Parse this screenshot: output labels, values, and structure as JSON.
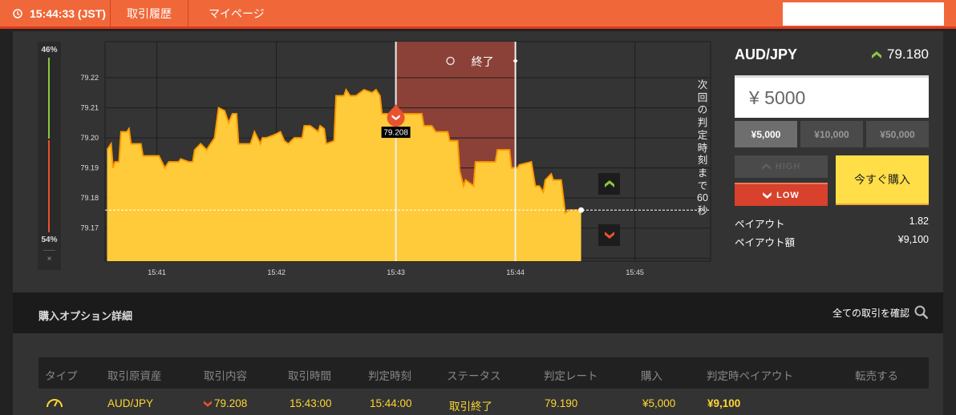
{
  "topbar": {
    "time": "15:44:33 (JST)",
    "nav": [
      "取引履歴",
      "マイページ"
    ]
  },
  "sentiment": {
    "high_pct": "46%",
    "low_pct": "54%",
    "close": "×",
    "high_color": "#8cc63f",
    "low_color": "#e8522e"
  },
  "chart_data": {
    "type": "area",
    "y_ticks": [
      "79.22",
      "79.21",
      "79.20",
      "79.19",
      "79.18",
      "79.17"
    ],
    "x_ticks": [
      "15:41",
      "15:42",
      "15:43",
      "15:44",
      "15:45"
    ],
    "xlim": [
      "15:40:34",
      "15:45:38"
    ],
    "ylim": [
      79.159,
      79.232
    ],
    "grid": true,
    "fill_color": "#ffcb3a",
    "line_color": "#ff9a00",
    "expired_label": "終了",
    "expired_range": [
      "15:43:00",
      "15:44:00"
    ],
    "entry": {
      "time": "15:43:00",
      "price": 79.208,
      "label": "79.208",
      "direction": "low"
    },
    "current_price_line": 79.176,
    "countdown": "次回の判定時刻まで60秒",
    "points": [
      [
        "15:40:35",
        79.196
      ],
      [
        "15:40:37",
        79.198
      ],
      [
        "15:40:38",
        79.19
      ],
      [
        "15:40:39",
        79.192
      ],
      [
        "15:40:41",
        79.192
      ],
      [
        "15:40:42",
        79.202
      ],
      [
        "15:40:45",
        79.202
      ],
      [
        "15:40:46",
        79.203
      ],
      [
        "15:40:47",
        79.198
      ],
      [
        "15:40:52",
        79.198
      ],
      [
        "15:40:53",
        79.194
      ],
      [
        "15:41:01",
        79.194
      ],
      [
        "15:41:04",
        79.19
      ],
      [
        "15:41:06",
        79.192
      ],
      [
        "15:41:11",
        79.192
      ],
      [
        "15:41:12",
        79.193
      ],
      [
        "15:41:16",
        79.192
      ],
      [
        "15:41:18",
        79.192
      ],
      [
        "15:41:19",
        79.196
      ],
      [
        "15:41:22",
        79.198
      ],
      [
        "15:41:25",
        79.196
      ],
      [
        "15:41:27",
        79.198
      ],
      [
        "15:41:29",
        79.2
      ],
      [
        "15:41:31",
        79.21
      ],
      [
        "15:41:34",
        79.209
      ],
      [
        "15:41:36",
        79.205
      ],
      [
        "15:41:38",
        79.208
      ],
      [
        "15:41:40",
        79.208
      ],
      [
        "15:41:41",
        79.198
      ],
      [
        "15:41:47",
        79.198
      ],
      [
        "15:41:49",
        79.202
      ],
      [
        "15:41:52",
        79.198
      ],
      [
        "15:41:53",
        79.2
      ],
      [
        "15:41:55",
        79.2
      ],
      [
        "15:41:59",
        79.201
      ],
      [
        "15:42:02",
        79.202
      ],
      [
        "15:42:04",
        79.199
      ],
      [
        "15:42:06",
        79.198
      ],
      [
        "15:42:09",
        79.2
      ],
      [
        "15:42:13",
        79.2
      ],
      [
        "15:42:14",
        79.204
      ],
      [
        "15:42:17",
        79.204
      ],
      [
        "15:42:21",
        79.202
      ],
      [
        "15:42:22",
        79.204
      ],
      [
        "15:42:24",
        79.203
      ],
      [
        "15:42:25",
        79.198
      ],
      [
        "15:42:29",
        79.199
      ],
      [
        "15:42:30",
        79.214
      ],
      [
        "15:42:34",
        79.214
      ],
      [
        "15:42:35",
        79.216
      ],
      [
        "15:42:37",
        79.214
      ],
      [
        "15:42:40",
        79.214
      ],
      [
        "15:42:44",
        79.216
      ],
      [
        "15:42:48",
        79.215
      ],
      [
        "15:42:50",
        79.216
      ],
      [
        "15:42:52",
        79.214
      ],
      [
        "15:42:53",
        79.208
      ],
      [
        "15:43:13",
        79.208
      ],
      [
        "15:43:14",
        79.204
      ],
      [
        "15:43:18",
        79.204
      ],
      [
        "15:43:20",
        79.202
      ],
      [
        "15:43:26",
        79.202
      ],
      [
        "15:43:27",
        79.199
      ],
      [
        "15:43:31",
        79.199
      ],
      [
        "15:43:32",
        79.189
      ],
      [
        "15:43:34",
        79.184
      ],
      [
        "15:43:35",
        79.186
      ],
      [
        "15:43:39",
        79.184
      ],
      [
        "15:43:40",
        79.192
      ],
      [
        "15:43:50",
        79.192
      ],
      [
        "15:43:51",
        79.196
      ],
      [
        "15:43:57",
        79.196
      ],
      [
        "15:43:58",
        79.19
      ],
      [
        "15:44:01",
        79.19
      ],
      [
        "15:44:02",
        79.191
      ],
      [
        "15:44:08",
        79.192
      ],
      [
        "15:44:10",
        79.184
      ],
      [
        "15:44:12",
        79.184
      ],
      [
        "15:44:14",
        79.182
      ],
      [
        "15:44:15",
        79.186
      ],
      [
        "15:44:18",
        79.188
      ],
      [
        "15:44:19",
        79.186
      ],
      [
        "15:44:23",
        79.186
      ],
      [
        "15:44:25",
        79.175
      ],
      [
        "15:44:27",
        79.176
      ],
      [
        "15:44:33",
        79.176
      ]
    ]
  },
  "trade": {
    "pair": "AUD/JPY",
    "price": "79.180",
    "amount": "¥ 5000",
    "quick": [
      "¥5,000",
      "¥10,000",
      "¥50,000"
    ],
    "high": "HIGH",
    "low": "LOW",
    "buy": "今すぐ購入",
    "payout_label": "ペイアウト",
    "payout": "1.82",
    "payout_amount_label": "ペイアウト額",
    "payout_amount": "¥9,100"
  },
  "details": {
    "title": "購入オプション詳細",
    "link": "全ての取引を確認",
    "columns": [
      "タイプ",
      "取引原資産",
      "取引内容",
      "取引時間",
      "判定時刻",
      "ステータス",
      "判定レート",
      "購入",
      "判定時ペイアウト",
      "転売する"
    ],
    "rows": [
      {
        "type_icon": "gauge-icon",
        "asset": "AUD/JPY",
        "direction": "low",
        "content": "79.208",
        "trade_time": "15:43:00",
        "judge_time": "15:44:00",
        "status": "取引終了",
        "rate": "79.190",
        "purchase": "¥5,000",
        "payout": "¥9,100"
      }
    ]
  }
}
